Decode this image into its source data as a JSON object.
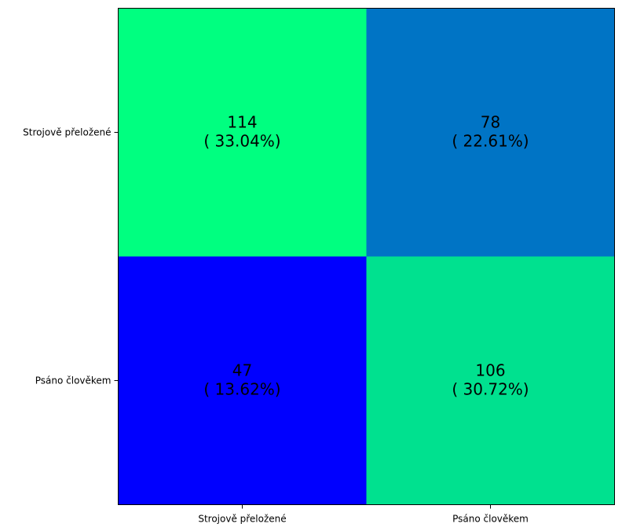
{
  "chart_data": {
    "type": "heatmap",
    "title": "",
    "xlabel": "",
    "ylabel": "",
    "x_categories": [
      "Strojově přeložené",
      "Psáno člověkem"
    ],
    "y_categories": [
      "Strojově přeložené",
      "Psáno člověkem"
    ],
    "values": [
      [
        114,
        78
      ],
      [
        47,
        106
      ]
    ],
    "cell_labels": [
      [
        {
          "count": "114",
          "percent": "( 33.04%)"
        },
        {
          "count": "78",
          "percent": "( 22.61%)"
        }
      ],
      [
        {
          "count": "47",
          "percent": "( 13.62%)"
        },
        {
          "count": "106",
          "percent": "( 30.72%)"
        }
      ]
    ],
    "colormap": "winter",
    "cell_colors": [
      [
        "#00ff80",
        "#0074c5"
      ],
      [
        "#0000ff",
        "#00e18f"
      ]
    ],
    "grid": false,
    "legend": "none"
  }
}
